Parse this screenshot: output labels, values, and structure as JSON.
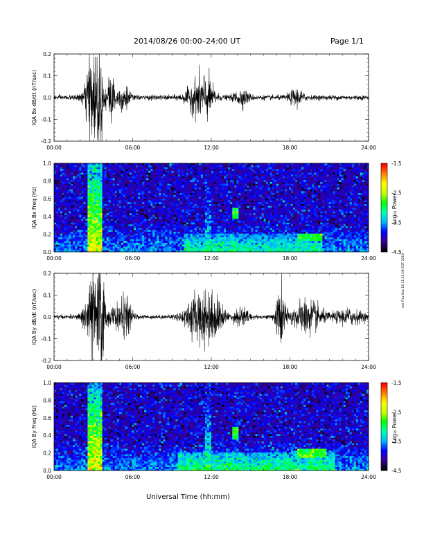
{
  "header": {
    "title": "2014/08/26  00:00–24:00 UT",
    "page": "Page 1/1"
  },
  "side_note": "ext Thu Sep 18 11:52:08 EDT 2019",
  "colorbar": {
    "label": "Log₁₀ Power",
    "ticks": [
      "-1.5",
      "-2.5",
      "-3.5",
      "-4.5"
    ],
    "range": [
      -4.5,
      -1.5
    ],
    "colormap": [
      "#000000",
      "#3a0090",
      "#0000ff",
      "#00b4ff",
      "#00ffb4",
      "#00ff00",
      "#c8ff00",
      "#ffff00",
      "#ff8000",
      "#ff0000"
    ]
  },
  "x_ticks": [
    "00:00",
    "06:00",
    "12:00",
    "18:00",
    "24:00"
  ],
  "xlabel": "Universal Time (hh:mm)",
  "chart_data": [
    {
      "type": "line",
      "id": "bx-ts",
      "ylabel": "IQA Bx dB/dt (nT/sec)",
      "xlim": [
        0,
        24
      ],
      "ylim": [
        -0.2,
        0.2
      ],
      "y_ticks": [
        "0.2",
        "0.1",
        "0.0",
        "-0.1",
        "-0.2"
      ],
      "baseline_noise": 0.01,
      "bursts": [
        {
          "center_h": 2.9,
          "width_h": 0.35,
          "amp": 0.19
        },
        {
          "center_h": 3.5,
          "width_h": 0.15,
          "amp": 0.2
        },
        {
          "center_h": 4.3,
          "width_h": 0.25,
          "amp": 0.1
        },
        {
          "center_h": 5.3,
          "width_h": 0.3,
          "amp": 0.06
        },
        {
          "center_h": 11.0,
          "width_h": 0.6,
          "amp": 0.07
        },
        {
          "center_h": 11.7,
          "width_h": 0.4,
          "amp": 0.05
        },
        {
          "center_h": 14.3,
          "width_h": 0.4,
          "amp": 0.03
        },
        {
          "center_h": 18.5,
          "width_h": 0.4,
          "amp": 0.03
        }
      ]
    },
    {
      "type": "heatmap",
      "id": "bx-spec",
      "ylabel": "IQA Bx Freq (Hz)",
      "xlim": [
        0,
        24
      ],
      "ylim": [
        0.0,
        1.0
      ],
      "y_ticks": [
        "1.0",
        "0.8",
        "0.6",
        "0.4",
        "0.2",
        "0.0"
      ],
      "features": [
        {
          "kind": "vertical",
          "x_h": [
            2.6,
            3.6
          ],
          "power": -2.3
        },
        {
          "kind": "vertical",
          "x_h": [
            11.6,
            12.0
          ],
          "power": -3.2
        },
        {
          "kind": "lowband",
          "x_h": [
            10.0,
            20.5
          ],
          "fmax": 0.2,
          "power": -3.1
        },
        {
          "kind": "patch",
          "x_h": [
            13.6,
            14.1
          ],
          "f": [
            0.38,
            0.5
          ],
          "power": -2.9
        },
        {
          "kind": "patch",
          "x_h": [
            18.5,
            20.5
          ],
          "f": [
            0.12,
            0.2
          ],
          "power": -2.9
        }
      ]
    },
    {
      "type": "line",
      "id": "by-ts",
      "ylabel": "IQA By dB/dt (nT/sec)",
      "xlim": [
        0,
        24
      ],
      "ylim": [
        -0.2,
        0.2
      ],
      "y_ticks": [
        "0.2",
        "0.1",
        "0.0",
        "-0.1",
        "-0.2"
      ],
      "baseline_noise": 0.008,
      "bursts": [
        {
          "center_h": 2.9,
          "width_h": 0.4,
          "amp": 0.17
        },
        {
          "center_h": 3.6,
          "width_h": 0.2,
          "amp": 0.19
        },
        {
          "center_h": 4.8,
          "width_h": 0.6,
          "amp": 0.04
        },
        {
          "center_h": 5.5,
          "width_h": 0.3,
          "amp": 0.06
        },
        {
          "center_h": 11.2,
          "width_h": 0.8,
          "amp": 0.1
        },
        {
          "center_h": 12.3,
          "width_h": 0.5,
          "amp": 0.05
        },
        {
          "center_h": 14.3,
          "width_h": 0.4,
          "amp": 0.04
        },
        {
          "center_h": 17.3,
          "width_h": 0.25,
          "amp": 0.13
        },
        {
          "center_h": 19.3,
          "width_h": 0.8,
          "amp": 0.07
        },
        {
          "center_h": 22.5,
          "width_h": 0.8,
          "amp": 0.03
        }
      ]
    },
    {
      "type": "heatmap",
      "id": "by-spec",
      "ylabel": "IQA By Freq (Hz)",
      "xlim": [
        0,
        24
      ],
      "ylim": [
        0.0,
        1.0
      ],
      "y_ticks": [
        "1.0",
        "0.8",
        "0.6",
        "0.4",
        "0.2",
        "0.0"
      ],
      "features": [
        {
          "kind": "vertical",
          "x_h": [
            2.6,
            3.6
          ],
          "power": -2.3
        },
        {
          "kind": "vertical",
          "x_h": [
            11.5,
            12.0
          ],
          "power": -3.0
        },
        {
          "kind": "lowband",
          "x_h": [
            9.5,
            21.5
          ],
          "fmax": 0.2,
          "power": -3.0
        },
        {
          "kind": "patch",
          "x_h": [
            13.6,
            14.1
          ],
          "f": [
            0.35,
            0.5
          ],
          "power": -2.9
        },
        {
          "kind": "patch",
          "x_h": [
            18.5,
            20.8
          ],
          "f": [
            0.15,
            0.24
          ],
          "power": -2.8
        }
      ]
    }
  ]
}
